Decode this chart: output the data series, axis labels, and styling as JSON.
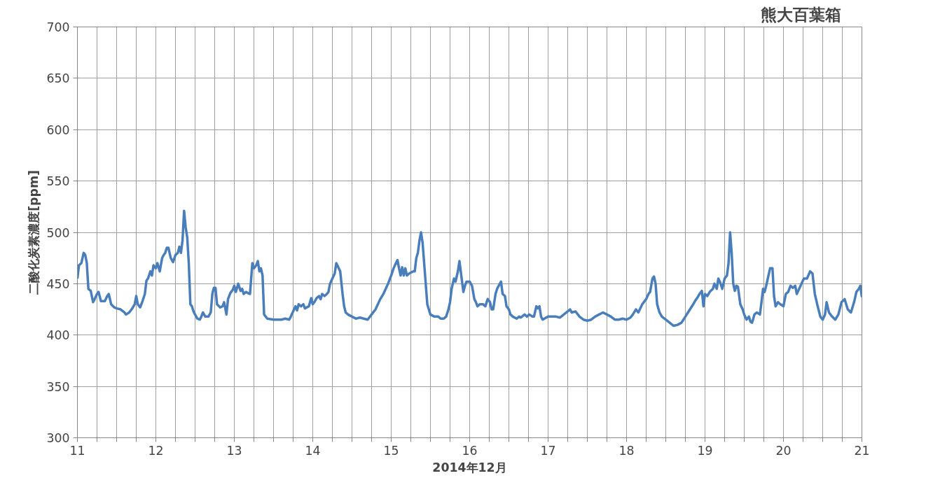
{
  "chart_data": {
    "type": "line",
    "title": "熊大百葉箱",
    "xlabel": "2014年12月",
    "ylabel": "二酸化炭素濃度[ppm]",
    "xlim": [
      11,
      21
    ],
    "ylim": [
      300,
      700
    ],
    "xticks": [
      11,
      {
        "value": 11.25,
        "label": null
      },
      {
        "value": 11.5,
        "label": null
      },
      {
        "value": 11.75,
        "label": null
      },
      12,
      {
        "value": 12.25,
        "label": null
      },
      {
        "value": 12.5,
        "label": null
      },
      {
        "value": 12.75,
        "label": null
      },
      13,
      {
        "value": 13.25,
        "label": null
      },
      {
        "value": 13.5,
        "label": null
      },
      {
        "value": 13.75,
        "label": null
      },
      14,
      {
        "value": 14.25,
        "label": null
      },
      {
        "value": 14.5,
        "label": null
      },
      {
        "value": 14.75,
        "label": null
      },
      15,
      {
        "value": 15.25,
        "label": null
      },
      {
        "value": 15.5,
        "label": null
      },
      {
        "value": 15.75,
        "label": null
      },
      16,
      {
        "value": 16.25,
        "label": null
      },
      {
        "value": 16.5,
        "label": null
      },
      {
        "value": 16.75,
        "label": null
      },
      17,
      {
        "value": 17.25,
        "label": null
      },
      {
        "value": 17.5,
        "label": null
      },
      {
        "value": 17.75,
        "label": null
      },
      18,
      {
        "value": 18.25,
        "label": null
      },
      {
        "value": 18.5,
        "label": null
      },
      {
        "value": 18.75,
        "label": null
      },
      19,
      {
        "value": 19.25,
        "label": null
      },
      {
        "value": 19.5,
        "label": null
      },
      {
        "value": 19.75,
        "label": null
      },
      20,
      {
        "value": 20.25,
        "label": null
      },
      {
        "value": 20.5,
        "label": null
      },
      {
        "value": 20.75,
        "label": null
      },
      21
    ],
    "yticks": [
      300,
      350,
      400,
      450,
      500,
      550,
      600,
      650,
      700
    ],
    "grid": true,
    "marker": "none",
    "line_style": "solid",
    "series": [
      {
        "color": "#4a7ebb",
        "x": [
          11.0,
          11.02,
          11.05,
          11.08,
          11.1,
          11.12,
          11.14,
          11.17,
          11.2,
          11.22,
          11.25,
          11.27,
          11.3,
          11.35,
          11.38,
          11.4,
          11.43,
          11.47,
          11.5,
          11.55,
          11.6,
          11.62,
          11.66,
          11.7,
          11.73,
          11.75,
          11.77,
          11.8,
          11.83,
          11.86,
          11.88,
          11.9,
          11.93,
          11.95,
          11.97,
          12.0,
          12.02,
          12.05,
          12.08,
          12.1,
          12.12,
          12.14,
          12.16,
          12.19,
          12.22,
          12.25,
          12.28,
          12.3,
          12.32,
          12.34,
          12.36,
          12.38,
          12.4,
          12.42,
          12.44,
          12.46,
          12.48,
          12.5,
          12.53,
          12.56,
          12.58,
          12.6,
          12.63,
          12.67,
          12.7,
          12.72,
          12.74,
          12.76,
          12.78,
          12.82,
          12.85,
          12.87,
          12.9,
          12.92,
          12.95,
          12.98,
          13.0,
          13.02,
          13.05,
          13.08,
          13.1,
          13.12,
          13.15,
          13.17,
          13.2,
          13.23,
          13.25,
          13.28,
          13.3,
          13.32,
          13.34,
          13.36,
          13.38,
          13.42,
          13.5,
          13.6,
          13.65,
          13.7,
          13.72,
          13.75,
          13.78,
          13.8,
          13.82,
          13.85,
          13.88,
          13.9,
          13.95,
          13.98,
          14.0,
          14.02,
          14.05,
          14.08,
          14.1,
          14.12,
          14.15,
          14.18,
          14.2,
          14.22,
          14.25,
          14.28,
          14.3,
          14.32,
          14.35,
          14.38,
          14.4,
          14.42,
          14.45,
          14.5,
          14.55,
          14.6,
          14.65,
          14.7,
          14.75,
          14.8,
          14.83,
          14.86,
          14.9,
          14.93,
          14.96,
          15.0,
          15.03,
          15.06,
          15.08,
          15.1,
          15.12,
          15.14,
          15.16,
          15.18,
          15.2,
          15.23,
          15.28,
          15.3,
          15.32,
          15.34,
          15.36,
          15.38,
          15.4,
          15.43,
          15.46,
          15.5,
          15.55,
          15.6,
          15.63,
          15.67,
          15.7,
          15.73,
          15.75,
          15.77,
          15.8,
          15.82,
          15.85,
          15.87,
          15.89,
          15.92,
          15.94,
          15.96,
          16.0,
          16.03,
          16.06,
          16.08,
          16.1,
          16.13,
          16.17,
          16.2,
          16.23,
          16.26,
          16.28,
          16.3,
          16.33,
          16.35,
          16.37,
          16.4,
          16.42,
          16.45,
          16.47,
          16.5,
          16.52,
          16.55,
          16.6,
          16.63,
          16.65,
          16.7,
          16.73,
          16.76,
          16.8,
          16.82,
          16.85,
          16.87,
          16.89,
          16.91,
          16.93,
          17.0,
          17.05,
          17.1,
          17.15,
          17.2,
          17.25,
          17.28,
          17.3,
          17.35,
          17.4,
          17.45,
          17.5,
          17.55,
          17.6,
          17.65,
          17.7,
          17.75,
          17.8,
          17.85,
          17.9,
          17.95,
          18.0,
          18.05,
          18.08,
          18.12,
          18.15,
          18.2,
          18.25,
          18.28,
          18.3,
          18.33,
          18.35,
          18.37,
          18.39,
          18.42,
          18.45,
          18.5,
          18.55,
          18.6,
          18.65,
          18.7,
          18.75,
          18.8,
          18.85,
          18.88,
          18.9,
          18.93,
          18.96,
          18.98,
          19.0,
          19.03,
          19.06,
          19.1,
          19.12,
          19.15,
          19.17,
          19.19,
          19.22,
          19.25,
          19.28,
          19.3,
          19.32,
          19.34,
          19.36,
          19.38,
          19.4,
          19.42,
          19.45,
          19.48,
          19.5,
          19.53,
          19.56,
          19.58,
          19.6,
          19.63,
          19.66,
          19.7,
          19.72,
          19.74,
          19.76,
          19.78,
          19.8,
          19.83,
          19.86,
          19.88,
          19.9,
          19.93,
          19.96,
          20.0,
          20.03,
          20.06,
          20.09,
          20.12,
          20.15,
          20.17,
          20.2,
          20.23,
          20.26,
          20.3,
          20.34,
          20.37,
          20.4,
          20.43,
          20.47,
          20.5,
          20.53,
          20.55,
          20.58,
          20.62,
          20.66,
          20.7,
          20.74,
          20.78,
          20.82,
          20.86,
          20.9,
          20.93,
          20.96,
          20.98,
          21.0
        ],
        "values": [
          455,
          468,
          470,
          480,
          478,
          470,
          445,
          443,
          432,
          435,
          440,
          442,
          433,
          433,
          438,
          440,
          430,
          427,
          426,
          425,
          422,
          420,
          422,
          426,
          430,
          438,
          430,
          427,
          433,
          440,
          453,
          455,
          462,
          458,
          468,
          465,
          470,
          462,
          475,
          478,
          480,
          485,
          485,
          475,
          471,
          478,
          480,
          486,
          480,
          492,
          521,
          505,
          495,
          470,
          430,
          428,
          423,
          420,
          416,
          415,
          418,
          422,
          418,
          418,
          422,
          440,
          446,
          446,
          430,
          427,
          428,
          432,
          420,
          435,
          441,
          444,
          448,
          442,
          450,
          443,
          445,
          440,
          442,
          441,
          440,
          470,
          465,
          468,
          472,
          462,
          465,
          458,
          420,
          416,
          415,
          415,
          416,
          415,
          418,
          423,
          428,
          424,
          430,
          428,
          430,
          426,
          428,
          436,
          430,
          432,
          436,
          438,
          435,
          440,
          438,
          440,
          442,
          450,
          455,
          460,
          470,
          467,
          462,
          440,
          428,
          422,
          420,
          418,
          416,
          417,
          416,
          415,
          420,
          425,
          430,
          435,
          440,
          445,
          450,
          458,
          465,
          470,
          473,
          465,
          458,
          466,
          458,
          465,
          458,
          460,
          462,
          462,
          475,
          480,
          492,
          500,
          490,
          460,
          430,
          420,
          418,
          418,
          416,
          416,
          418,
          425,
          432,
          445,
          455,
          452,
          462,
          472,
          460,
          442,
          448,
          452,
          452,
          448,
          435,
          432,
          428,
          430,
          430,
          428,
          435,
          432,
          425,
          425,
          440,
          445,
          448,
          452,
          440,
          438,
          428,
          425,
          420,
          418,
          416,
          418,
          417,
          420,
          418,
          420,
          418,
          418,
          428,
          426,
          428,
          418,
          415,
          418,
          418,
          418,
          417,
          420,
          423,
          425,
          422,
          423,
          418,
          415,
          414,
          415,
          418,
          420,
          422,
          420,
          418,
          415,
          415,
          416,
          415,
          417,
          420,
          425,
          422,
          430,
          435,
          440,
          442,
          455,
          457,
          450,
          430,
          422,
          418,
          415,
          412,
          409,
          410,
          412,
          418,
          424,
          430,
          434,
          436,
          440,
          443,
          428,
          440,
          438,
          442,
          445,
          450,
          445,
          455,
          452,
          445,
          455,
          458,
          470,
          500,
          480,
          450,
          443,
          448,
          447,
          430,
          425,
          420,
          415,
          418,
          413,
          412,
          420,
          422,
          420,
          432,
          445,
          442,
          448,
          455,
          465,
          465,
          438,
          428,
          432,
          430,
          428,
          440,
          442,
          448,
          446,
          448,
          440,
          445,
          450,
          455,
          455,
          462,
          460,
          440,
          430,
          418,
          415,
          420,
          432,
          422,
          418,
          415,
          420,
          432,
          435,
          425,
          422,
          432,
          442,
          445,
          448,
          437
        ]
      }
    ]
  }
}
